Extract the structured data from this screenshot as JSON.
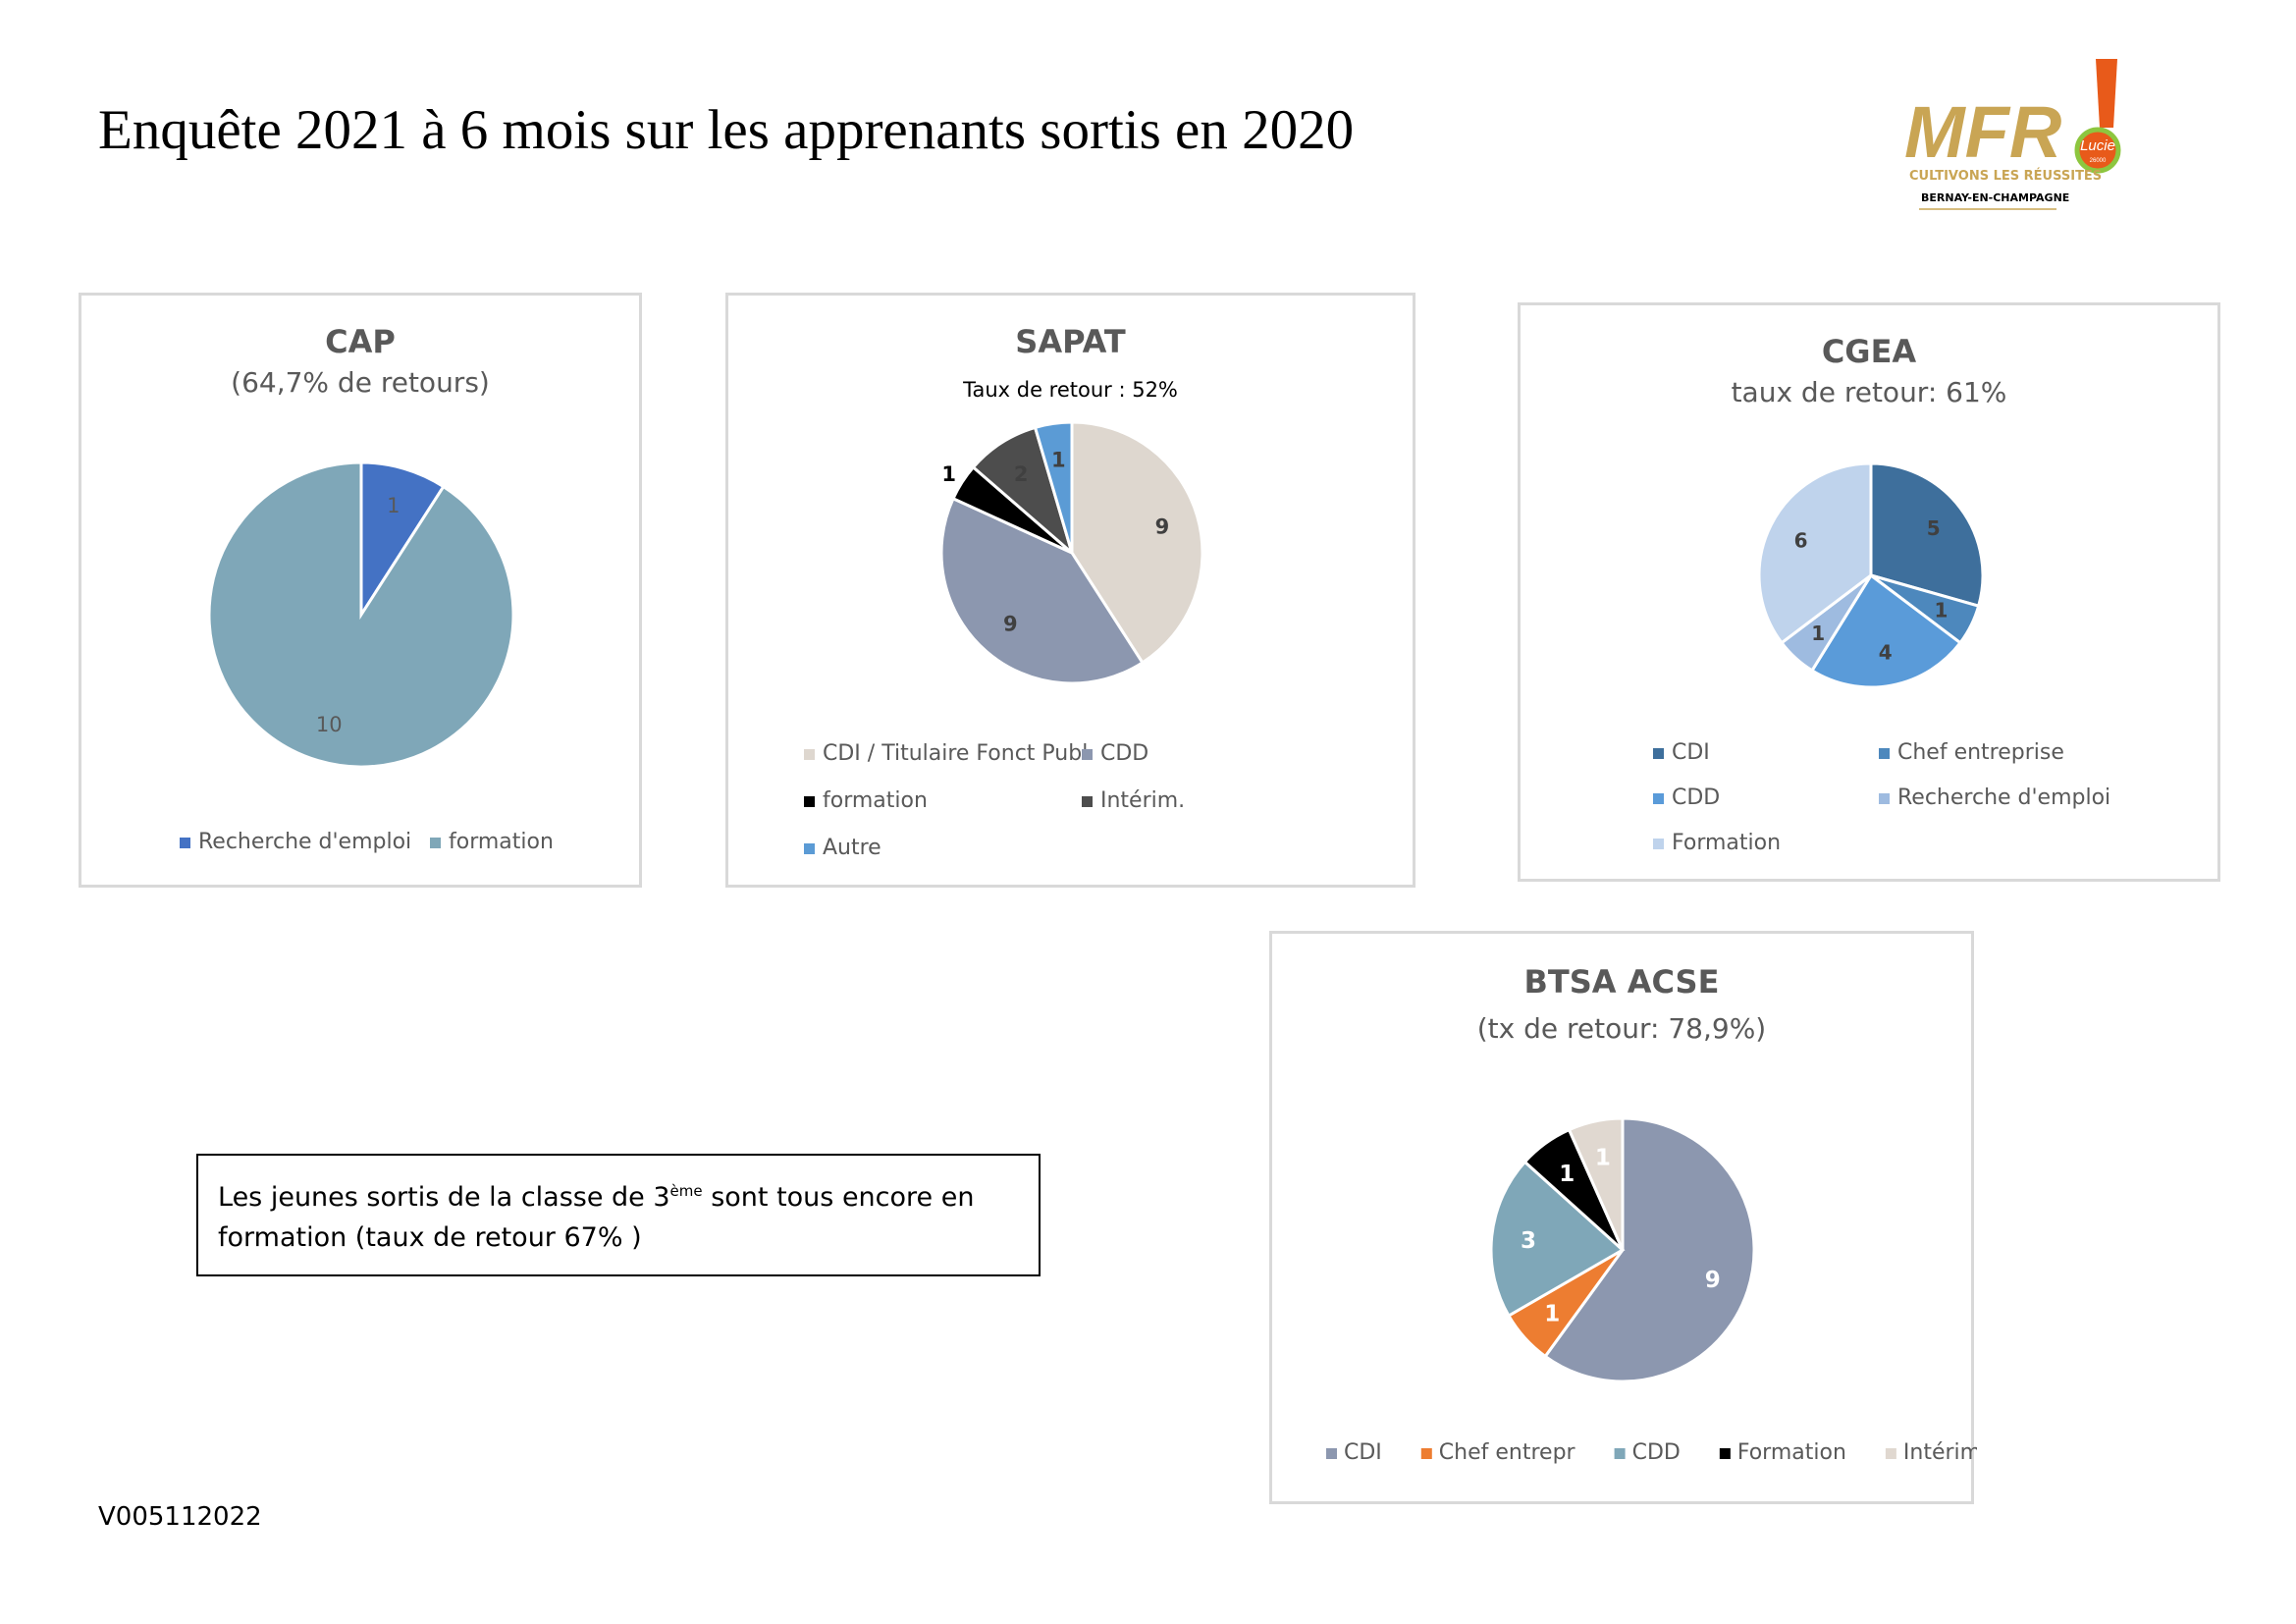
{
  "page": {
    "title": "Enquête 2021 à 6 mois sur les  apprenants sortis en 2020",
    "version": "V005112022"
  },
  "logo": {
    "brand": "MFR",
    "badge": "Lucie",
    "badge_small": "26000",
    "tagline": "CULTIVONS LES RÉUSSITES",
    "place": "BERNAY-EN-CHAMPAGNE",
    "colors": {
      "gold": "#c9a554",
      "orange": "#e85a1a",
      "green": "#8dc63f"
    }
  },
  "note": {
    "line1_prefix": "Les jeunes sortis de la classe de 3",
    "line1_sup": "ème",
    "line1_suffix": " sont tous encore en",
    "line2": "formation (taux de retour 67% )"
  },
  "chart_data": [
    {
      "id": "cap",
      "type": "pie",
      "title": "CAP",
      "subtitle": "(64,7% de retours)",
      "categories": [
        "Recherche d'emploi",
        "formation"
      ],
      "values": [
        1,
        10
      ],
      "colors": [
        "#4472c4",
        "#7fa7b8"
      ],
      "labels": [
        "1",
        "10"
      ],
      "label_colors": [
        "#595959",
        "#595959"
      ],
      "legend_position": "bottom"
    },
    {
      "id": "sapat",
      "type": "pie",
      "title": "SAPAT",
      "subtitle": "Taux de retour : 52%",
      "categories": [
        "CDI / Titulaire Fonct Publ",
        "CDD",
        "formation",
        "Intérim.",
        "Autre"
      ],
      "values": [
        9,
        9,
        1,
        2,
        1
      ],
      "colors": [
        "#ded7cf",
        "#8c97af",
        "#000000",
        "#4d4d4d",
        "#5b9bd5"
      ],
      "labels": [
        "9",
        "9",
        "1",
        "2",
        "1"
      ],
      "label_colors": [
        "#404040",
        "#404040",
        "#000000",
        "#404040",
        "#404040"
      ],
      "legend_position": "bottom"
    },
    {
      "id": "cgea",
      "type": "pie",
      "title": "CGEA",
      "subtitle": "taux de retour: 61%",
      "categories": [
        "CDI",
        "Chef entreprise",
        "CDD",
        "Recherche d'emploi",
        "Formation"
      ],
      "values": [
        5,
        1,
        4,
        1,
        6
      ],
      "colors": [
        "#3e6f9c",
        "#4d88bd",
        "#5a9bd9",
        "#9ebbe0",
        "#bfd3ec"
      ],
      "labels": [
        "5",
        "1",
        "4",
        "1",
        "6"
      ],
      "label_colors": [
        "#404040",
        "#404040",
        "#404040",
        "#404040",
        "#404040"
      ],
      "legend_position": "bottom"
    },
    {
      "id": "btsa",
      "type": "pie",
      "title": "BTSA ACSE",
      "subtitle": "(tx de retour: 78,9%)",
      "categories": [
        "CDI",
        "Chef entrepr",
        "CDD",
        "Formation",
        "Intérim."
      ],
      "values": [
        9,
        1,
        3,
        1,
        1
      ],
      "colors": [
        "#8c97af",
        "#ed7d31",
        "#7fa7b8",
        "#000000",
        "#e0d8d0"
      ],
      "labels": [
        "9",
        "1",
        "3",
        "1",
        "1"
      ],
      "label_colors": [
        "#ffffff",
        "#ffffff",
        "#ffffff",
        "#ffffff",
        "#ffffff"
      ],
      "legend_position": "bottom"
    }
  ]
}
